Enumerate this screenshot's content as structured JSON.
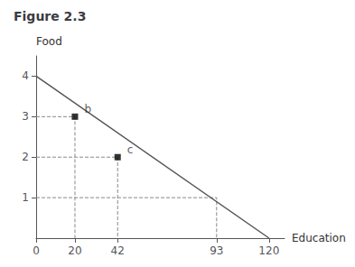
{
  "chart_data": {
    "type": "line",
    "title": "Figure 2.3",
    "xlabel": "Education",
    "ylabel": "Food",
    "xlim": [
      0,
      128
    ],
    "xticks": [
      0,
      20,
      42,
      93,
      120
    ],
    "ylim": [
      0,
      4.5
    ],
    "yticks": [
      1,
      2,
      3,
      4
    ],
    "grid": false,
    "series": [
      {
        "type": "line",
        "line_style": "solid",
        "color": "#555555",
        "x": [
          0,
          120
        ],
        "values": [
          4,
          0
        ]
      },
      {
        "type": "line",
        "line_style": "dashed",
        "color": "#888888",
        "x": [
          0,
          20,
          20
        ],
        "values": [
          3,
          3,
          0
        ]
      },
      {
        "type": "line",
        "line_style": "dashed",
        "color": "#888888",
        "x": [
          0,
          42,
          42
        ],
        "values": [
          2,
          2,
          0
        ]
      },
      {
        "type": "line",
        "line_style": "dashed",
        "color": "#888888",
        "x": [
          0,
          93,
          93
        ],
        "values": [
          1,
          1,
          0
        ]
      },
      {
        "type": "scatter",
        "marker": "square",
        "color": "#000000",
        "x": [
          20,
          42
        ],
        "values": [
          3,
          2
        ],
        "labels": [
          "b",
          "c"
        ]
      }
    ]
  }
}
